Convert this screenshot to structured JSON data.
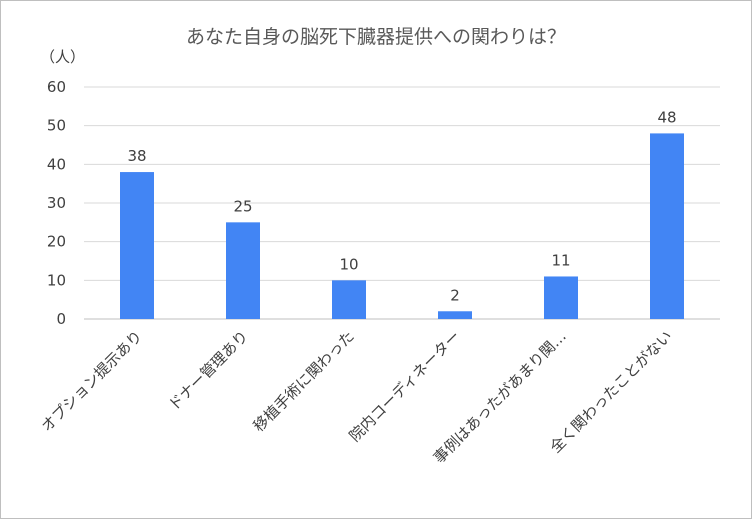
{
  "chart_data": {
    "type": "bar",
    "title": "あなた自身の脳死下臓器提供への関わりは？",
    "ylabel": "（人）",
    "xlabel": "",
    "ylim": [
      0,
      60
    ],
    "yticks": [
      0,
      10,
      20,
      30,
      40,
      50,
      60
    ],
    "grid": true,
    "categories": [
      "オプション提示あり",
      "ドナー管理あり",
      "移植手術に関わった",
      "院内コーディネーター",
      "事例はあったがあまり関…",
      "全く関わったことがない"
    ],
    "values": [
      38,
      25,
      10,
      2,
      11,
      48
    ],
    "bar_color": "#4285f4"
  }
}
